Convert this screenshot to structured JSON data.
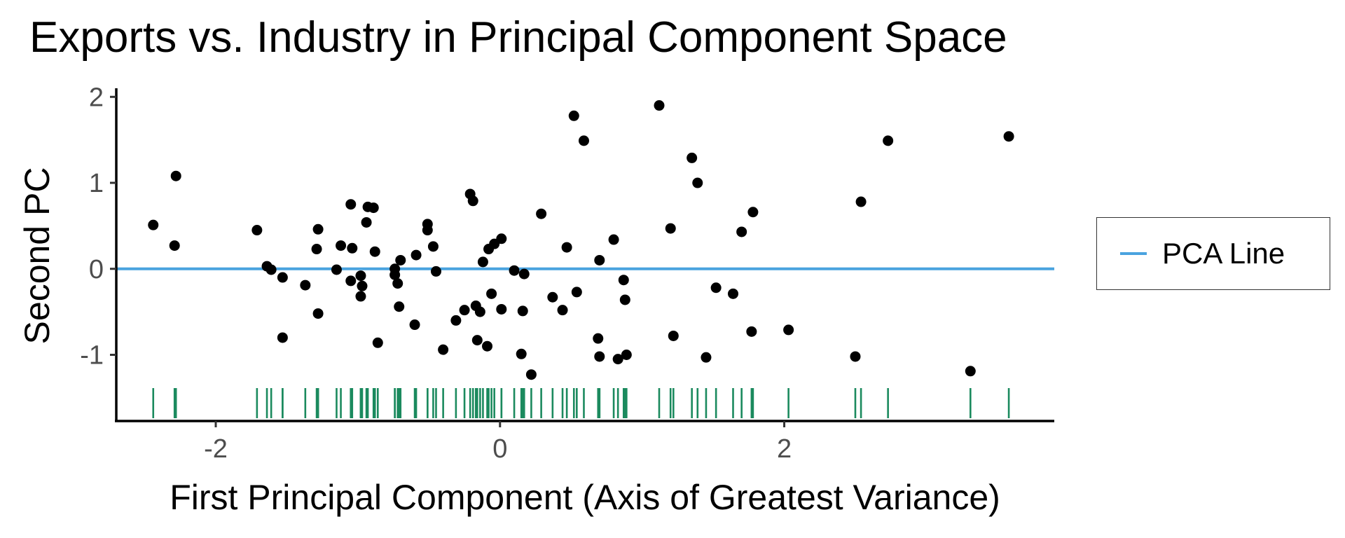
{
  "chart_data": {
    "type": "scatter",
    "title": "Exports vs. Industry in Principal Component Space",
    "xlabel": "First Principal Component (Axis of Greatest Variance)",
    "ylabel": "Second PC",
    "xlim": [
      -2.7,
      3.9
    ],
    "ylim": [
      -1.77,
      2.1
    ],
    "xticks": [
      -2,
      0,
      2
    ],
    "xtick_labels": [
      "-2",
      "0",
      "2"
    ],
    "yticks": [
      2,
      1,
      0,
      -1
    ],
    "ytick_labels": [
      "2",
      "1",
      "0",
      "-1"
    ],
    "grid": false,
    "legend_position": "right",
    "reference_line": {
      "name": "PCA Line",
      "y": 0,
      "color": "#4aa3df"
    },
    "rug": {
      "side": "bottom",
      "color": "#1b8a5e"
    },
    "point_color": "#000000",
    "points": [
      [
        -2.44,
        0.51
      ],
      [
        -2.28,
        1.08
      ],
      [
        -2.29,
        0.27
      ],
      [
        -1.71,
        0.45
      ],
      [
        -1.64,
        0.03
      ],
      [
        -1.61,
        -0.01
      ],
      [
        -1.53,
        -0.1
      ],
      [
        -1.53,
        -0.8
      ],
      [
        -1.37,
        -0.19
      ],
      [
        -1.29,
        0.23
      ],
      [
        -1.28,
        0.46
      ],
      [
        -1.28,
        -0.52
      ],
      [
        -1.15,
        -0.01
      ],
      [
        -1.12,
        0.27
      ],
      [
        -1.05,
        0.75
      ],
      [
        -1.05,
        -0.14
      ],
      [
        -1.04,
        0.24
      ],
      [
        -0.98,
        -0.08
      ],
      [
        -0.97,
        -0.2
      ],
      [
        -0.98,
        -0.32
      ],
      [
        -0.94,
        0.54
      ],
      [
        -0.93,
        0.72
      ],
      [
        -0.89,
        0.71
      ],
      [
        -0.88,
        0.2
      ],
      [
        -0.86,
        -0.86
      ],
      [
        -0.74,
        0.0
      ],
      [
        -0.74,
        -0.07
      ],
      [
        -0.72,
        -0.17
      ],
      [
        -0.71,
        -0.44
      ],
      [
        -0.7,
        0.1
      ],
      [
        -0.6,
        -0.65
      ],
      [
        -0.59,
        0.16
      ],
      [
        -0.51,
        0.45
      ],
      [
        -0.51,
        0.52
      ],
      [
        -0.47,
        0.26
      ],
      [
        -0.45,
        -0.03
      ],
      [
        -0.4,
        -0.94
      ],
      [
        -0.31,
        -0.6
      ],
      [
        -0.25,
        -0.48
      ],
      [
        -0.21,
        0.87
      ],
      [
        -0.19,
        0.79
      ],
      [
        -0.17,
        -0.43
      ],
      [
        -0.16,
        -0.83
      ],
      [
        -0.14,
        -0.5
      ],
      [
        -0.12,
        0.08
      ],
      [
        -0.09,
        -0.9
      ],
      [
        -0.08,
        0.23
      ],
      [
        -0.06,
        -0.29
      ],
      [
        -0.04,
        0.29
      ],
      [
        0.01,
        0.35
      ],
      [
        0.01,
        -0.47
      ],
      [
        0.1,
        -0.02
      ],
      [
        0.15,
        -0.99
      ],
      [
        0.16,
        -0.49
      ],
      [
        0.17,
        -0.06
      ],
      [
        0.22,
        -1.23
      ],
      [
        0.29,
        0.64
      ],
      [
        0.37,
        -0.33
      ],
      [
        0.44,
        -0.48
      ],
      [
        0.47,
        0.25
      ],
      [
        0.52,
        1.78
      ],
      [
        0.54,
        -0.27
      ],
      [
        0.59,
        1.49
      ],
      [
        0.69,
        -0.81
      ],
      [
        0.7,
        0.1
      ],
      [
        0.7,
        -1.02
      ],
      [
        0.8,
        0.34
      ],
      [
        0.83,
        -1.05
      ],
      [
        0.87,
        -0.13
      ],
      [
        0.88,
        -0.36
      ],
      [
        0.89,
        -1.0
      ],
      [
        1.12,
        1.9
      ],
      [
        1.2,
        0.47
      ],
      [
        1.22,
        -0.78
      ],
      [
        1.35,
        1.29
      ],
      [
        1.39,
        1.0
      ],
      [
        1.45,
        -1.03
      ],
      [
        1.52,
        -0.22
      ],
      [
        1.64,
        -0.29
      ],
      [
        1.7,
        0.43
      ],
      [
        1.77,
        -0.73
      ],
      [
        1.78,
        0.66
      ],
      [
        2.03,
        -0.71
      ],
      [
        2.5,
        -1.02
      ],
      [
        2.54,
        0.78
      ],
      [
        2.73,
        1.49
      ],
      [
        3.31,
        -1.19
      ],
      [
        3.58,
        1.54
      ]
    ]
  }
}
